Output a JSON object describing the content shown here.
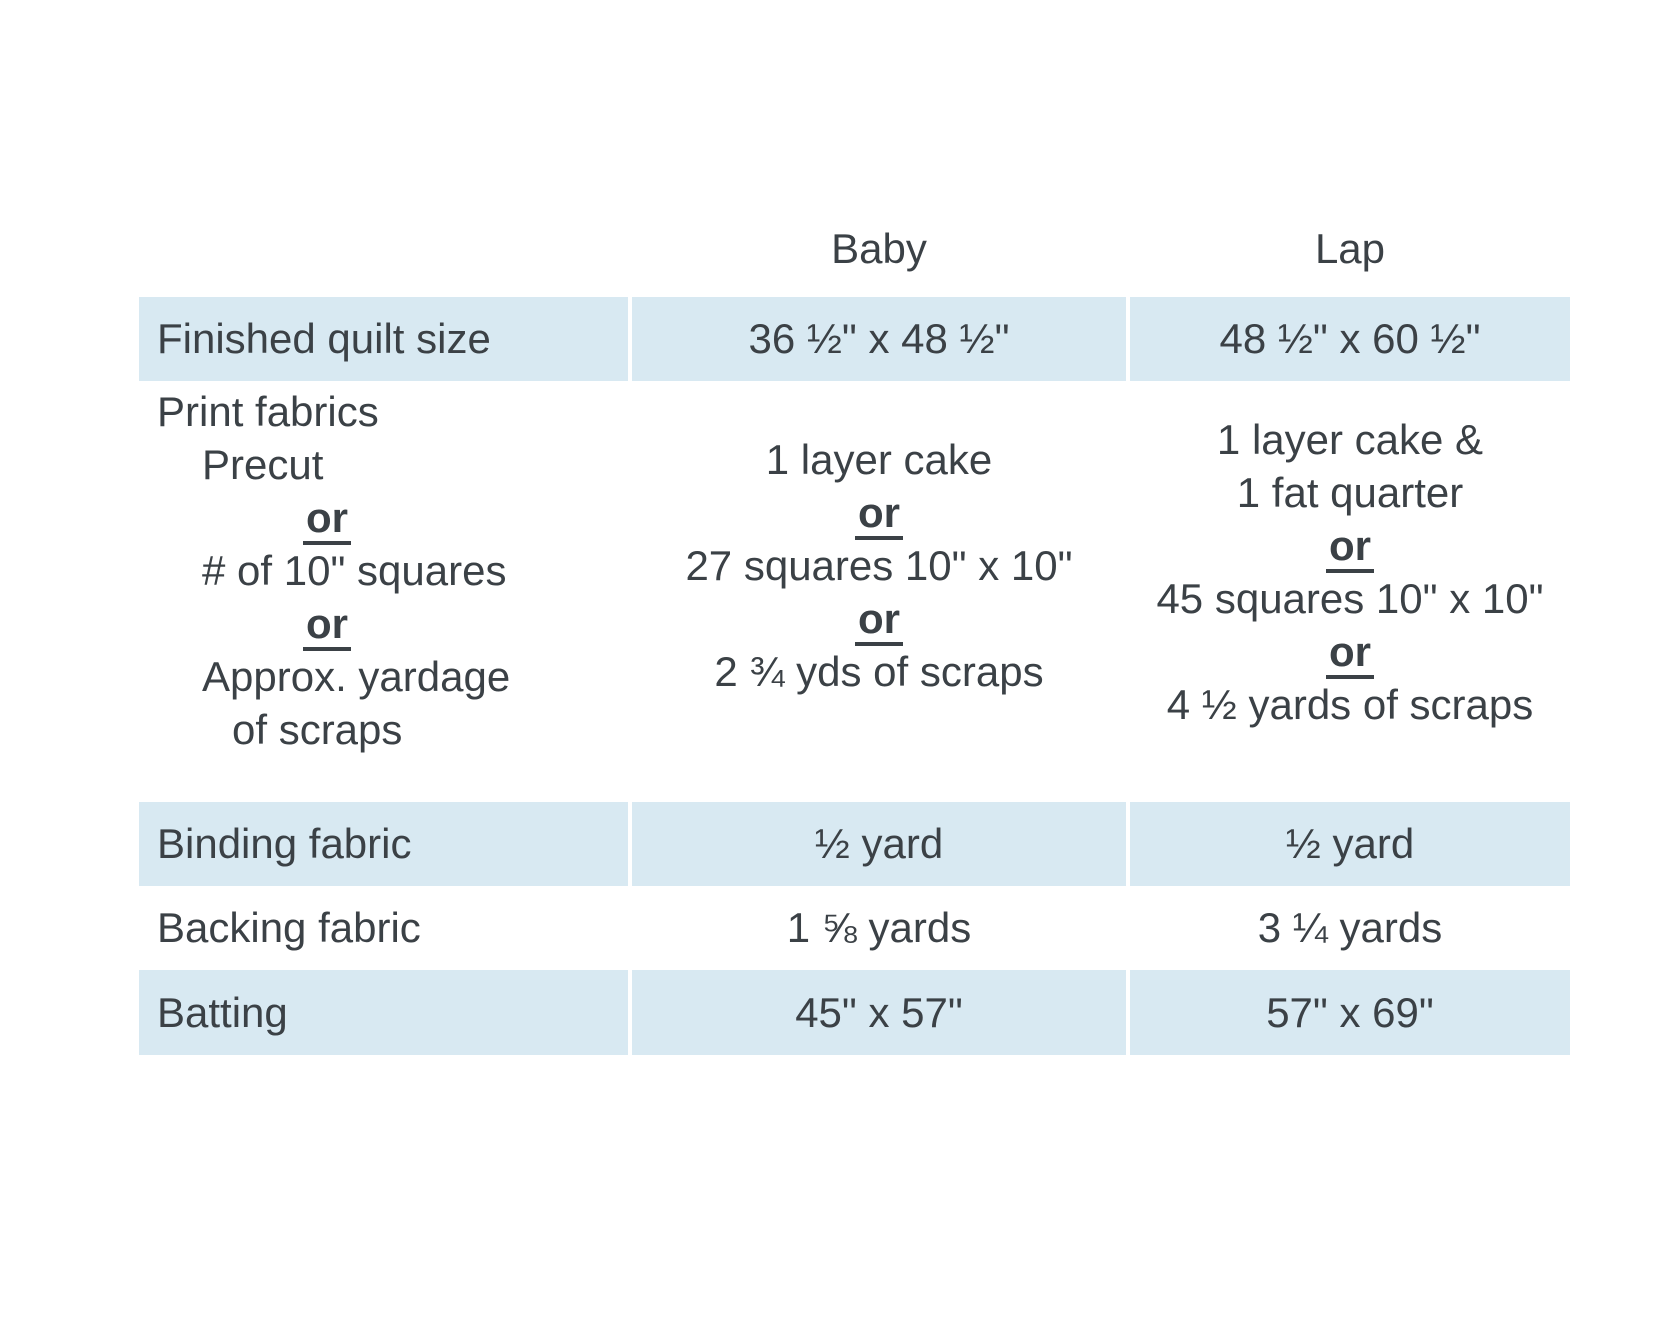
{
  "colors": {
    "page_bg": "#ffffff",
    "row_shade": "#d8e9f2",
    "text": "#3b4146"
  },
  "table": {
    "columns": {
      "baby": "Baby",
      "lap": "Lap"
    },
    "finished_size": {
      "label": "Finished quilt size",
      "baby": "36 ½\" x 48 ½\"",
      "lap": "48 ½\" x 60 ½\""
    },
    "print_fabrics": {
      "label": "Print fabrics",
      "or_word": "or",
      "rows": {
        "precut": {
          "label": "Precut",
          "baby": "1 layer cake",
          "lap_line1": "1 layer cake &",
          "lap_line2": "1 fat quarter"
        },
        "squares": {
          "label": "# of 10\" squares",
          "baby": "27 squares 10\" x 10\"",
          "lap": "45 squares 10\" x 10\""
        },
        "yardage": {
          "label_line1": "Approx. yardage",
          "label_line2": "of scraps",
          "baby": "2 ¾ yds of scraps",
          "lap": "4 ½ yards of scraps"
        }
      }
    },
    "binding": {
      "label": "Binding fabric",
      "baby": "½ yard",
      "lap": "½ yard"
    },
    "backing": {
      "label": "Backing fabric",
      "baby": "1 ⅝ yards",
      "lap": "3 ¼ yards"
    },
    "batting": {
      "label": "Batting",
      "baby": "45\" x 57\"",
      "lap": "57\" x 69\""
    }
  }
}
